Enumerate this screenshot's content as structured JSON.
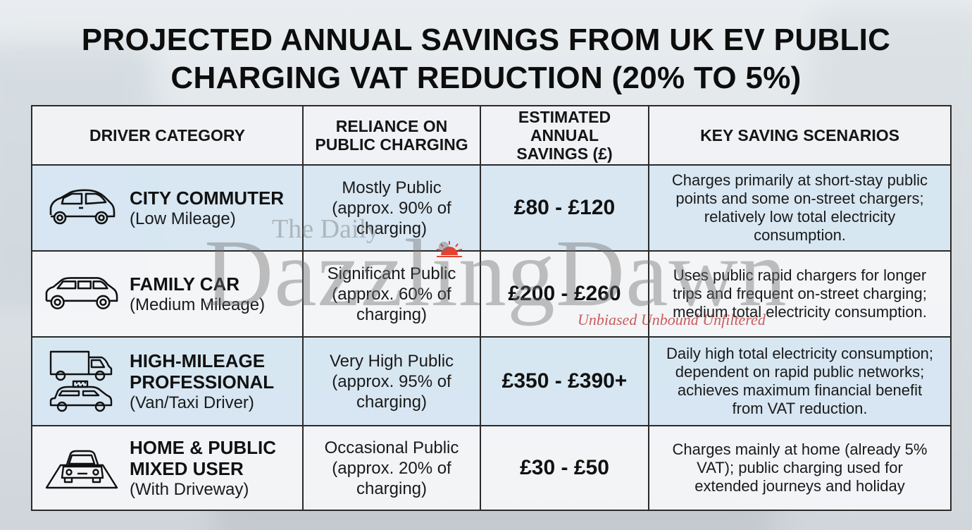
{
  "title": {
    "line1": "PROJECTED ANNUAL SAVINGS FROM UK EV PUBLIC",
    "line2": "CHARGING VAT REDUCTION (20% TO 5%)"
  },
  "headers": {
    "driver_category": "DRIVER CATEGORY",
    "reliance_l1": "RELIANCE ON",
    "reliance_l2": "PUBLIC CHARGING",
    "savings_l1": "ESTIMATED ANNUAL",
    "savings_l2": "SAVINGS (£)",
    "scenarios": "KEY SAVING SCENARIOS"
  },
  "rows": [
    {
      "icon": "city-car-icon",
      "name": "CITY COMMUTER",
      "sub": "(Low Mileage)",
      "reliance": [
        "Mostly Public",
        "(approx. 90% of",
        "charging)"
      ],
      "savings": "£80 - £120",
      "scenario": [
        "Charges primarily at short-stay public",
        "points and some on-street chargers;",
        "relatively low total electricity",
        "consumption."
      ]
    },
    {
      "icon": "suv-car-icon",
      "name": "FAMILY CAR",
      "sub": "(Medium Mileage)",
      "reliance": [
        "Significant Public",
        "(approx. 60% of",
        "charging)"
      ],
      "savings": "£200 - £260",
      "scenario": [
        "Uses public rapid chargers for longer",
        "trips and frequent on-street charging;",
        "medium total electricity consumption."
      ]
    },
    {
      "icon": "van-taxi-icon",
      "name_l1": "HIGH-MILEAGE",
      "name_l2": "PROFESSIONAL",
      "sub": "(Van/Taxi Driver)",
      "reliance": [
        "Very High Public",
        "(approx. 95% of",
        "charging)"
      ],
      "savings": "£350 - £390+",
      "scenario": [
        "Daily high total electricity consumption;",
        "dependent on rapid public networks;",
        "achieves maximum financial benefit",
        "from VAT reduction."
      ]
    },
    {
      "icon": "car-driveway-icon",
      "name_l1": "HOME & PUBLIC",
      "name_l2": "MIXED USER",
      "sub": "(With Driveway)",
      "reliance": [
        "Occasional Public",
        "(approx. 20% of",
        "charging)"
      ],
      "savings": "£30 - £50",
      "scenario": [
        "Charges mainly at home (already 5%",
        "VAT); public charging used for",
        "extended journeys and holiday"
      ]
    }
  ],
  "watermark": {
    "top": "The Daily",
    "main": "DazzlingDawn",
    "tagline": "Unbiased Unbound Unfiltered"
  },
  "colors": {
    "row_shade": "#d7e7f2",
    "row_plain": "#f4f6f8",
    "header_bg": "#f1f3f5",
    "border": "#2a2a2a",
    "tagline": "#be2828"
  }
}
